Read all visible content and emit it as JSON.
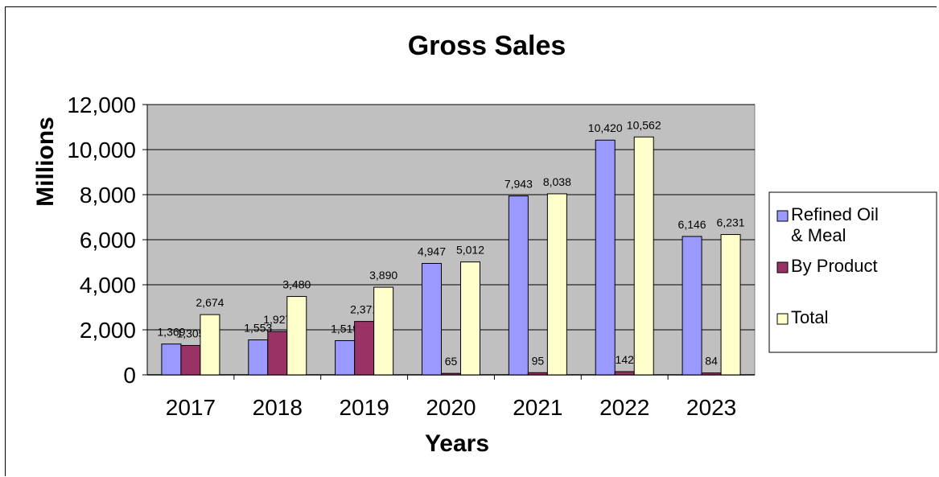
{
  "chart_data": {
    "type": "bar",
    "title": "Gross Sales",
    "xlabel": "Years",
    "ylabel": "Millions",
    "categories": [
      "2017",
      "2018",
      "2019",
      "2020",
      "2021",
      "2022",
      "2023"
    ],
    "series": [
      {
        "name": "Refined Oil & Meal",
        "name_lines": [
          "Refined Oil",
          "& Meal"
        ],
        "color": "#9999ff",
        "values": [
          1369,
          1553,
          1519,
          4947,
          7943,
          10420,
          6146
        ],
        "labels": [
          "1,369",
          "1,553",
          "1,519",
          "4,947",
          "7,943",
          "10,420",
          "6,146"
        ]
      },
      {
        "name": "By Product",
        "name_lines": [
          "By Product"
        ],
        "color": "#993366",
        "values": [
          1305,
          1927,
          2371,
          65,
          95,
          142,
          84
        ],
        "labels": [
          "1,305",
          "1,927",
          "2,371",
          "65",
          "95",
          "142",
          "84"
        ]
      },
      {
        "name": "Total",
        "name_lines": [
          "Total"
        ],
        "color": "#ffffcc",
        "values": [
          2674,
          3480,
          3890,
          5012,
          8038,
          10562,
          6231
        ],
        "labels": [
          "2,674",
          "3,480",
          "3,890",
          "5,012",
          "8,038",
          "10,562",
          "6,231"
        ]
      }
    ],
    "ylim": [
      0,
      12000
    ],
    "yticks": [
      0,
      2000,
      4000,
      6000,
      8000,
      10000,
      12000
    ],
    "ytick_labels": [
      "0",
      "2,000",
      "4,000",
      "6,000",
      "8,000",
      "10,000",
      "12,000"
    ],
    "grid": true,
    "plot_background": "#c0c0c0",
    "legend_position": "right"
  }
}
